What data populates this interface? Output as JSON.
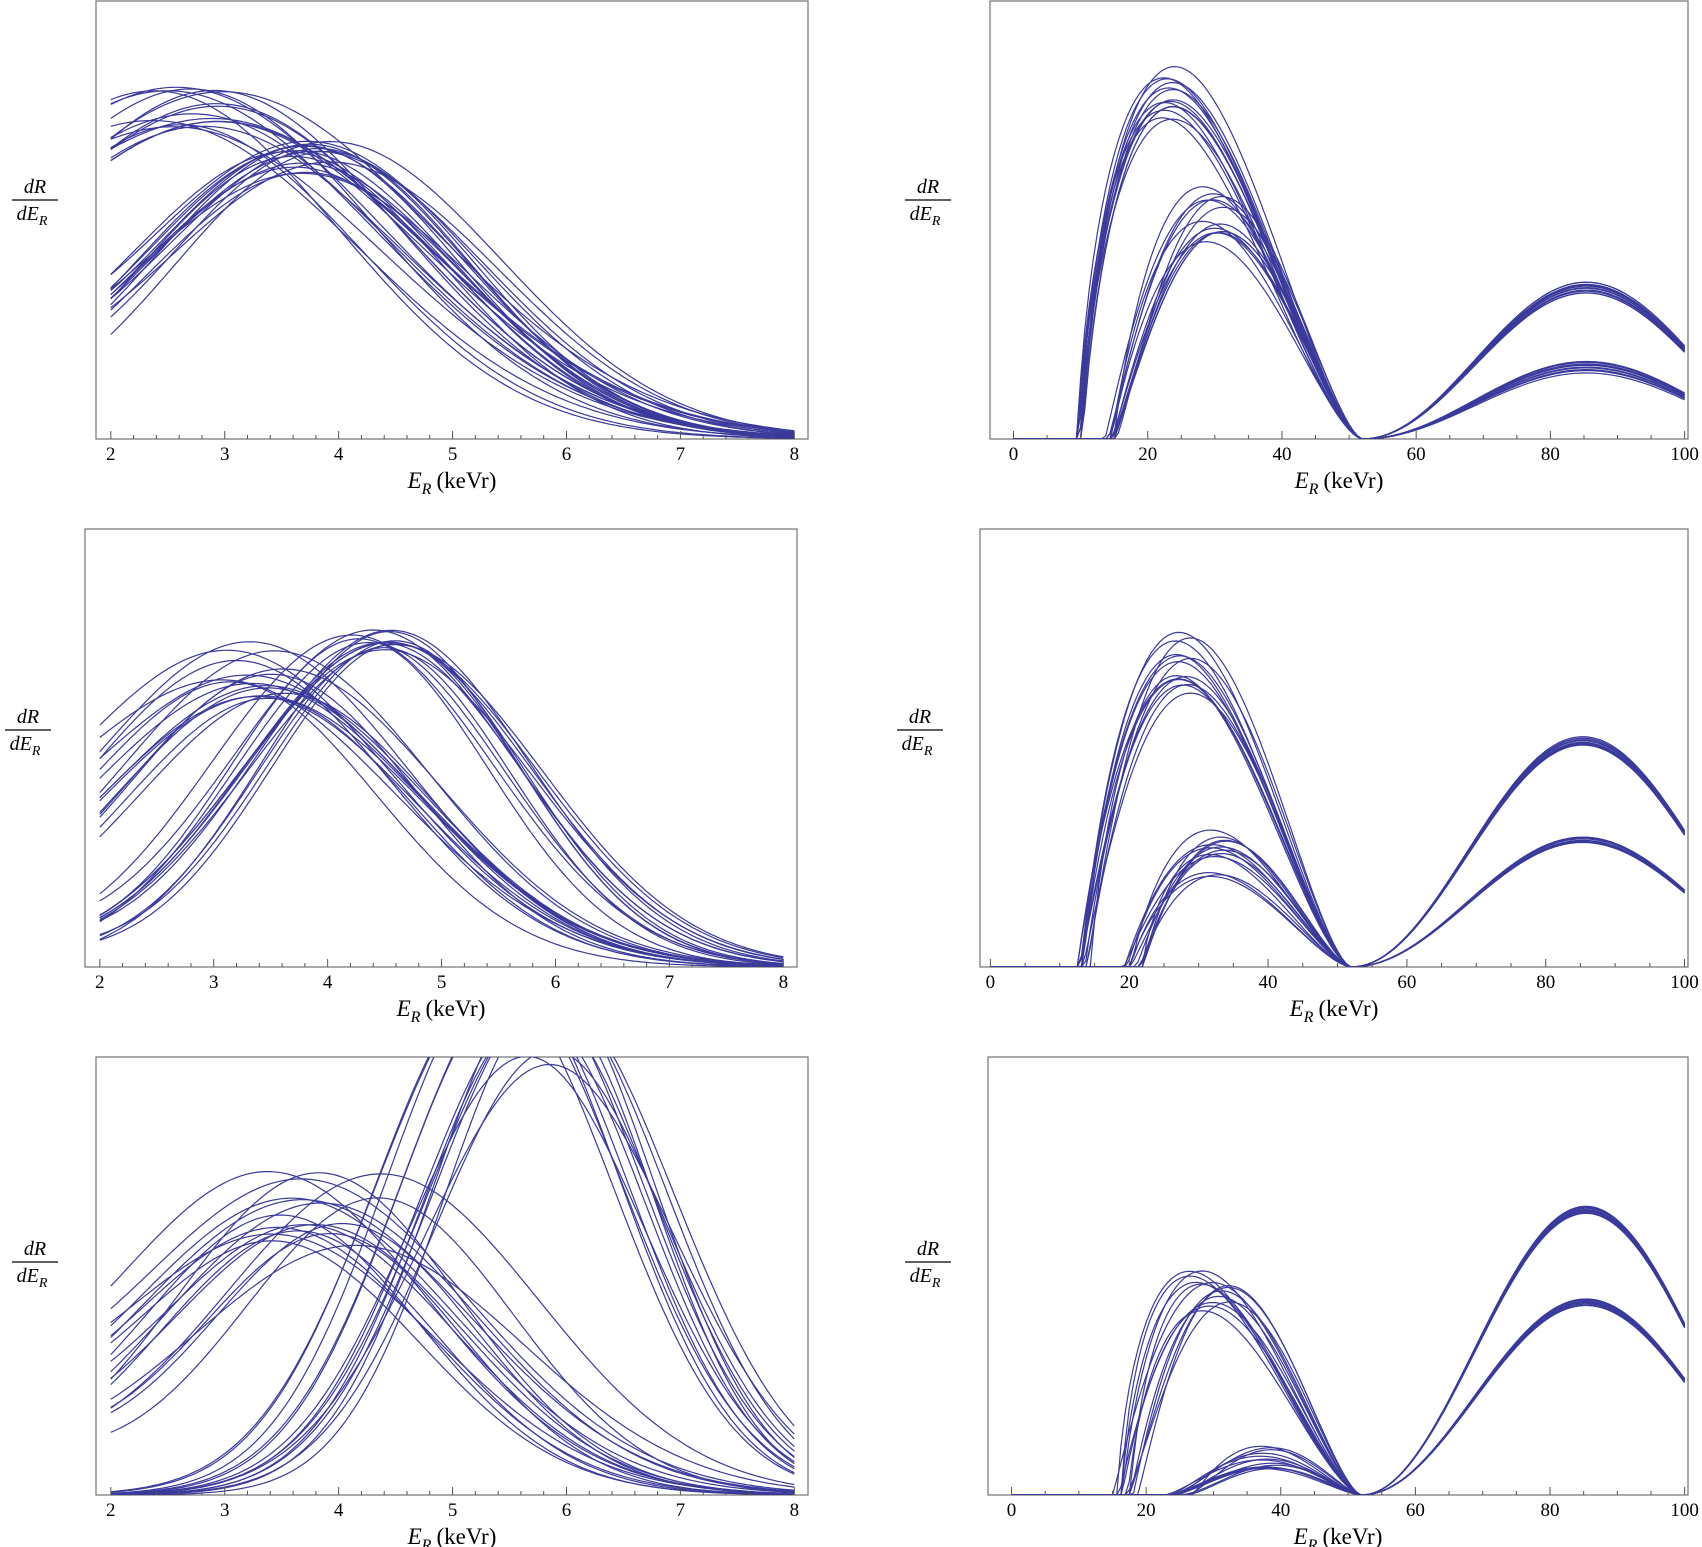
{
  "curve_color": "#3a3a9c",
  "chart_data": [
    {
      "type": "line",
      "title": "",
      "xlabel": "E_R (keVr)",
      "xlabel_sym": "E",
      "xlabel_sub": "R",
      "xlabel_unit": "(keVr)",
      "ylabel": "dR/dE_R",
      "ylabel_num": "dR",
      "ylabel_den": "dE",
      "ylabel_sub": "R",
      "xlim": [
        1.87,
        8.12
      ],
      "ylim": [
        0,
        1
      ],
      "ticks": [
        2,
        3,
        4,
        5,
        6,
        7,
        8
      ],
      "tick_labels": [
        "2",
        "3",
        "4",
        "5",
        "6",
        "7",
        "8"
      ],
      "groups": [
        {
          "kind": "gauss",
          "count": 16,
          "mu": [
            2.45,
            3.0
          ],
          "sig": [
            1.55,
            1.85
          ],
          "amp": [
            0.68,
            0.8
          ],
          "tail": 0.06
        },
        {
          "kind": "gauss",
          "count": 16,
          "mu": [
            3.55,
            4.05
          ],
          "sig": [
            1.3,
            1.55
          ],
          "amp": [
            0.6,
            0.68
          ],
          "tail": 0.05
        }
      ]
    },
    {
      "type": "line",
      "title": "",
      "xlabel": "E_R (keVr)",
      "xlabel_sym": "E",
      "xlabel_sub": "R",
      "xlabel_unit": "(keVr)",
      "ylabel": "dR/dE_R",
      "ylabel_num": "dR",
      "ylabel_den": "dE",
      "ylabel_sub": "R",
      "xlim": [
        -3.5,
        100.5
      ],
      "ylim": [
        0,
        1
      ],
      "ticks": [
        0,
        20,
        40,
        60,
        80,
        100
      ],
      "tick_labels": [
        "0",
        "20",
        "40",
        "60",
        "80",
        "100"
      ],
      "groups": [
        {
          "kind": "ff",
          "count": 14,
          "peak1": [
            21.8,
            24.0
          ],
          "amp1": [
            0.73,
            0.86
          ],
          "x0": [
            9.5,
            10.5
          ],
          "amp2": [
            0.33,
            0.36
          ],
          "dip": 52
        },
        {
          "kind": "ff",
          "count": 14,
          "peak1": [
            28.0,
            31.5
          ],
          "amp1": [
            0.45,
            0.58
          ],
          "x0": [
            13.5,
            15.5
          ],
          "amp2": [
            0.15,
            0.18
          ],
          "dip": 52
        }
      ]
    },
    {
      "type": "line",
      "title": "",
      "xlabel": "E_R (keVr)",
      "xlabel_sym": "E",
      "xlabel_sub": "R",
      "xlabel_unit": "(keVr)",
      "ylabel": "dR/dE_R",
      "ylabel_num": "dR",
      "ylabel_den": "dE",
      "ylabel_sub": "R",
      "xlim": [
        1.87,
        8.12
      ],
      "ylim": [
        0,
        1
      ],
      "ticks": [
        2,
        3,
        4,
        5,
        6,
        7,
        8
      ],
      "tick_labels": [
        "2",
        "3",
        "4",
        "5",
        "6",
        "7",
        "8"
      ],
      "groups": [
        {
          "kind": "gauss",
          "count": 16,
          "mu": [
            3.1,
            3.7
          ],
          "sig": [
            1.25,
            1.5
          ],
          "amp": [
            0.61,
            0.74
          ],
          "tail": 0.05
        },
        {
          "kind": "gauss",
          "count": 14,
          "mu": [
            4.2,
            4.65
          ],
          "sig": [
            1.1,
            1.3
          ],
          "amp": [
            0.72,
            0.77
          ],
          "tail": 0.03
        }
      ]
    },
    {
      "type": "line",
      "title": "",
      "xlabel": "E_R (keVr)",
      "xlabel_sym": "E",
      "xlabel_sub": "R",
      "xlabel_unit": "(keVr)",
      "ylabel": "dR/dE_R",
      "ylabel_num": "dR",
      "ylabel_den": "dE",
      "ylabel_sub": "R",
      "xlim": [
        -1.5,
        100.5
      ],
      "ylim": [
        0,
        1
      ],
      "ticks": [
        0,
        20,
        40,
        60,
        80,
        100
      ],
      "tick_labels": [
        "0",
        "20",
        "40",
        "60",
        "80",
        "100"
      ],
      "groups": [
        {
          "kind": "ff",
          "count": 14,
          "peak1": [
            26.5,
            29.0
          ],
          "amp1": [
            0.62,
            0.77
          ],
          "x0": [
            12.5,
            14.5
          ],
          "amp2": [
            0.5,
            0.53
          ],
          "dip": 52
        },
        {
          "kind": "ff",
          "count": 14,
          "peak1": [
            31.5,
            34.0
          ],
          "amp1": [
            0.2,
            0.35
          ],
          "x0": [
            19.0,
            22.0
          ],
          "amp2": [
            0.28,
            0.3
          ],
          "dip": 52
        }
      ]
    },
    {
      "type": "line",
      "title": "",
      "xlabel": "E_R (keVr)",
      "xlabel_sym": "E",
      "xlabel_sub": "R",
      "xlabel_unit": "(keVr)",
      "ylabel": "dR/dE_R",
      "ylabel_num": "dR",
      "ylabel_den": "dE",
      "ylabel_sub": "R",
      "xlim": [
        1.87,
        8.12
      ],
      "ylim": [
        0,
        1
      ],
      "ticks": [
        2,
        3,
        4,
        5,
        6,
        7,
        8
      ],
      "tick_labels": [
        "2",
        "3",
        "4",
        "5",
        "6",
        "7",
        "8"
      ],
      "groups": [
        {
          "kind": "gauss",
          "count": 18,
          "mu": [
            3.4,
            4.4
          ],
          "sig": [
            1.1,
            1.5
          ],
          "amp": [
            0.55,
            0.74
          ],
          "tail": 0.06
        },
        {
          "kind": "gauss",
          "count": 14,
          "mu": [
            5.3,
            5.9
          ],
          "sig": [
            0.9,
            1.1
          ],
          "amp": [
            0.98,
            1.2
          ],
          "tail": 0.0
        }
      ]
    },
    {
      "type": "line",
      "title": "",
      "xlabel": "E_R (keVr)",
      "xlabel_sym": "E",
      "xlabel_sub": "R",
      "xlabel_unit": "(keVr)",
      "ylabel": "dR/dE_R",
      "ylabel_num": "dR",
      "ylabel_den": "dE",
      "ylabel_sub": "R",
      "xlim": [
        -3.5,
        100.5
      ],
      "ylim": [
        0,
        1
      ],
      "ticks": [
        0,
        20,
        40,
        60,
        80,
        100
      ],
      "tick_labels": [
        "0",
        "20",
        "40",
        "60",
        "80",
        "100"
      ],
      "groups": [
        {
          "kind": "ff",
          "count": 14,
          "peak1": [
            26.0,
            32.5
          ],
          "amp1": [
            0.42,
            0.52
          ],
          "x0": [
            15.0,
            19.0
          ],
          "amp2": [
            0.64,
            0.66
          ],
          "dip": 52
        },
        {
          "kind": "ff",
          "count": 14,
          "peak1": [
            36.5,
            39.5
          ],
          "amp1": [
            0.06,
            0.12
          ],
          "x0": [
            22.0,
            27.0
          ],
          "amp2": [
            0.43,
            0.45
          ],
          "dip": 52
        }
      ]
    }
  ]
}
